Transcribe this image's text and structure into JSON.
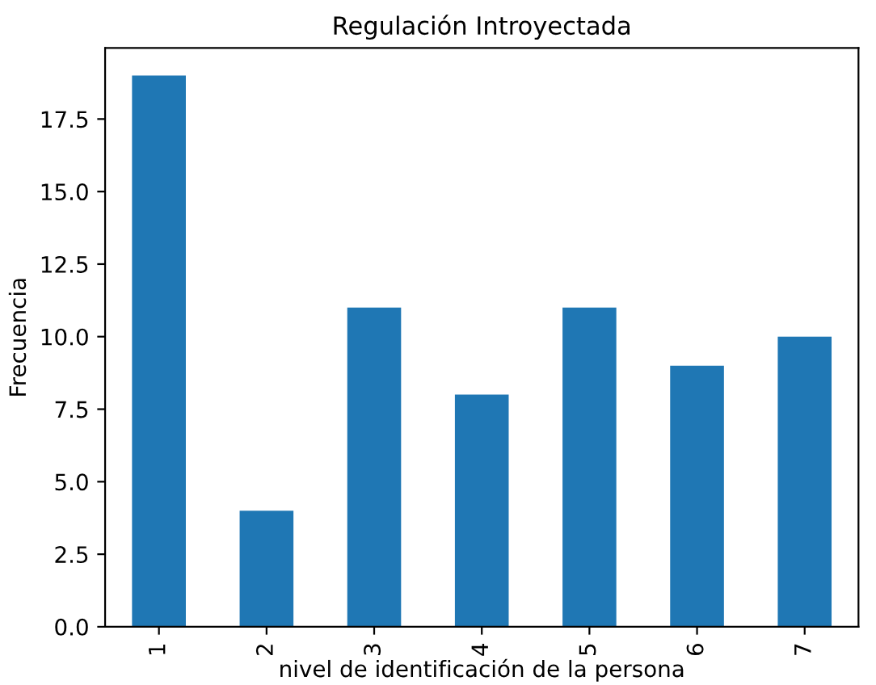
{
  "chart_data": {
    "type": "bar",
    "title": "Regulación Introyectada",
    "xlabel": "nivel de identificación de la persona",
    "ylabel": "Frecuencia",
    "categories": [
      "1",
      "2",
      "3",
      "4",
      "5",
      "6",
      "7"
    ],
    "values": [
      19,
      4,
      11,
      8,
      11,
      9,
      10
    ],
    "color": "#1f77b4",
    "ylim": [
      0,
      19.95
    ],
    "yticks": [
      {
        "value": 0,
        "label": "0.0"
      },
      {
        "value": 2.5,
        "label": "2.5"
      },
      {
        "value": 5,
        "label": "5.0"
      },
      {
        "value": 7.5,
        "label": "7.5"
      },
      {
        "value": 10,
        "label": "10.0"
      },
      {
        "value": 12.5,
        "label": "12.5"
      },
      {
        "value": 15,
        "label": "15.0"
      },
      {
        "value": 17.5,
        "label": "17.5"
      }
    ],
    "grid": false,
    "legend": false
  }
}
